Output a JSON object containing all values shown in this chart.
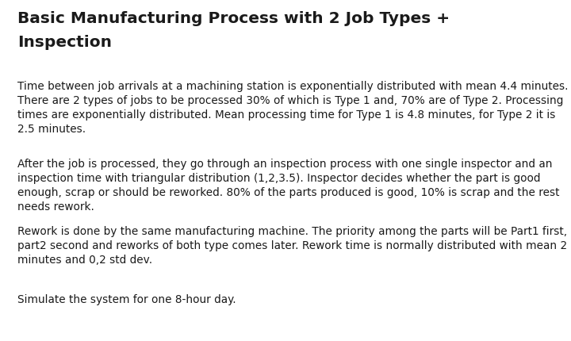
{
  "title_line1": "Basic Manufacturing Process with 2 Job Types +",
  "title_line2": "Inspection",
  "background_color": "#ffffff",
  "title_fontsize": 14.5,
  "title_fontweight": "bold",
  "body_fontsize": 9.8,
  "paragraphs": [
    "Time between job arrivals at a machining station is exponentially distributed with mean 4.4 minutes.\nThere are 2 types of jobs to be processed 30% of which is Type 1 and, 70% are of Type 2. Processing\ntimes are exponentially distributed. Mean processing time for Type 1 is 4.8 minutes, for Type 2 it is\n2.5 minutes.",
    "After the job is processed, they go through an inspection process with one single inspector and an\ninspection time with triangular distribution (1,2,3.5). Inspector decides whether the part is good\nenough, scrap or should be reworked. 80% of the parts produced is good, 10% is scrap and the rest\nneeds rework.",
    "Rework is done by the same manufacturing machine. The priority among the parts will be Part1 first,\npart2 second and reworks of both type comes later. Rework time is normally distributed with mean 2\nminutes and 0,2 std dev.",
    "Simulate the system for one 8-hour day."
  ],
  "text_color": "#1a1a1a",
  "fig_width": 7.2,
  "fig_height": 4.31,
  "dpi": 100
}
